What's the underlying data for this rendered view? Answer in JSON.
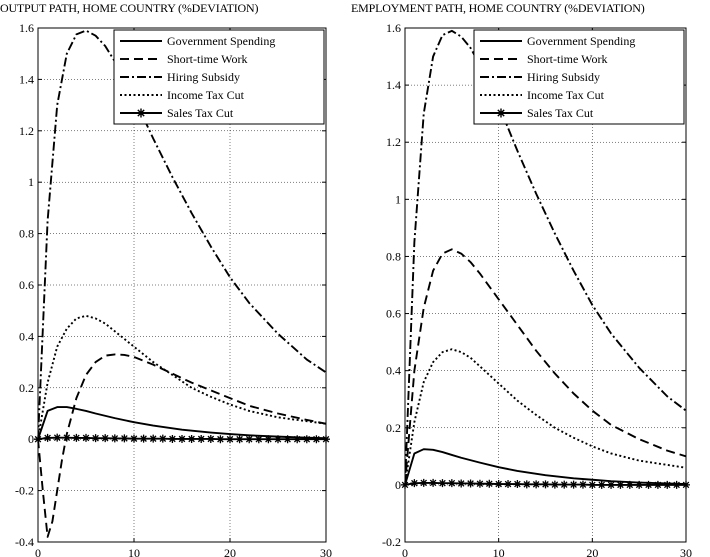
{
  "chart_data": [
    {
      "type": "line",
      "title": "OUTPUT PATH, HOME COUNTRY (%DEVIATION)",
      "xlabel": "",
      "ylabel": "",
      "xlim": [
        0,
        30
      ],
      "ylim": [
        -0.4,
        1.6
      ],
      "xticks": [
        0,
        10,
        20,
        30
      ],
      "yticks": [
        -0.4,
        -0.2,
        0,
        0.2,
        0.4,
        0.6,
        0.8,
        1,
        1.2,
        1.4,
        1.6
      ],
      "xtick_labels": [
        "0",
        "10",
        "20",
        "30"
      ],
      "ytick_labels": [
        "-0.4",
        "-0.2",
        "0",
        "0.2",
        "0.4",
        "0.6",
        "0.8",
        "1",
        "1.2",
        "1.4",
        "1.6"
      ],
      "grid": true,
      "legend_position": "top-right",
      "series": [
        {
          "name": "Government Spending",
          "style": "solid",
          "x": [
            0,
            1,
            2,
            3,
            4,
            5,
            6,
            8,
            10,
            12,
            15,
            18,
            20,
            22,
            25,
            28,
            30
          ],
          "y": [
            0,
            0.11,
            0.125,
            0.125,
            0.118,
            0.11,
            0.1,
            0.082,
            0.066,
            0.053,
            0.037,
            0.026,
            0.02,
            0.015,
            0.01,
            0.006,
            0.004
          ]
        },
        {
          "name": "Short-time Work",
          "style": "dashed",
          "x": [
            0,
            0.5,
            1,
            1.5,
            2,
            2.5,
            3,
            4,
            5,
            6,
            7,
            8,
            9,
            10,
            12,
            14,
            16,
            18,
            20,
            22,
            25,
            28,
            30
          ],
          "y": [
            0,
            -0.2,
            -0.38,
            -0.32,
            -0.2,
            -0.08,
            0.02,
            0.16,
            0.25,
            0.3,
            0.325,
            0.33,
            0.328,
            0.32,
            0.29,
            0.255,
            0.22,
            0.19,
            0.16,
            0.13,
            0.1,
            0.075,
            0.06
          ]
        },
        {
          "name": "Hiring Subsidy",
          "style": "dashdot",
          "x": [
            0,
            1,
            2,
            3,
            4,
            5,
            6,
            7,
            8,
            10,
            12,
            14,
            16,
            18,
            20,
            22,
            25,
            28,
            30
          ],
          "y": [
            0,
            0.85,
            1.3,
            1.5,
            1.575,
            1.59,
            1.57,
            1.53,
            1.47,
            1.33,
            1.17,
            1.02,
            0.88,
            0.75,
            0.63,
            0.53,
            0.41,
            0.31,
            0.26
          ]
        },
        {
          "name": "Income Tax Cut",
          "style": "dotted",
          "x": [
            0,
            1,
            2,
            3,
            4,
            5,
            6,
            7,
            8,
            10,
            12,
            14,
            16,
            18,
            20,
            22,
            25,
            28,
            30
          ],
          "y": [
            0,
            0.22,
            0.36,
            0.43,
            0.47,
            0.48,
            0.47,
            0.45,
            0.42,
            0.36,
            0.3,
            0.25,
            0.2,
            0.165,
            0.135,
            0.11,
            0.085,
            0.07,
            0.06
          ]
        },
        {
          "name": "Sales Tax Cut",
          "style": "solid-star",
          "x": [
            0,
            1,
            2,
            3,
            4,
            5,
            6,
            7,
            8,
            9,
            10,
            11,
            12,
            13,
            14,
            15,
            16,
            17,
            18,
            19,
            20,
            21,
            22,
            23,
            24,
            25,
            26,
            27,
            28,
            29,
            30
          ],
          "y": [
            0,
            0.005,
            0.006,
            0.006,
            0.005,
            0.005,
            0.004,
            0.004,
            0.003,
            0.003,
            0.002,
            0.002,
            0.002,
            0.002,
            0.001,
            0.001,
            0.001,
            0.001,
            0.001,
            0,
            0,
            0,
            0,
            0,
            0,
            0,
            0,
            0,
            0,
            0,
            0
          ]
        }
      ]
    },
    {
      "type": "line",
      "title": "EMPLOYMENT PATH, HOME COUNTRY (%DEVIATION)",
      "xlabel": "",
      "ylabel": "",
      "xlim": [
        0,
        30
      ],
      "ylim": [
        -0.2,
        1.6
      ],
      "xticks": [
        0,
        10,
        20,
        30
      ],
      "yticks": [
        -0.2,
        0,
        0.2,
        0.4,
        0.6,
        0.8,
        1,
        1.2,
        1.4,
        1.6
      ],
      "xtick_labels": [
        "0",
        "10",
        "20",
        "30"
      ],
      "ytick_labels": [
        "-0.2",
        "0",
        "0.2",
        "0.4",
        "0.6",
        "0.8",
        "1",
        "1.2",
        "1.4",
        "1.6"
      ],
      "grid": true,
      "legend_position": "top-right",
      "series": [
        {
          "name": "Government Spending",
          "style": "solid",
          "x": [
            0,
            1,
            2,
            3,
            4,
            5,
            6,
            8,
            10,
            12,
            15,
            18,
            20,
            22,
            25,
            28,
            30
          ],
          "y": [
            0,
            0.11,
            0.125,
            0.123,
            0.115,
            0.105,
            0.095,
            0.078,
            0.062,
            0.049,
            0.034,
            0.023,
            0.018,
            0.013,
            0.008,
            0.005,
            0.003
          ]
        },
        {
          "name": "Short-time Work",
          "style": "dashed",
          "x": [
            0,
            1,
            2,
            3,
            4,
            5,
            6,
            7,
            8,
            10,
            12,
            14,
            16,
            18,
            20,
            22,
            25,
            28,
            30
          ],
          "y": [
            0,
            0.4,
            0.62,
            0.75,
            0.81,
            0.825,
            0.81,
            0.78,
            0.74,
            0.65,
            0.56,
            0.47,
            0.39,
            0.32,
            0.26,
            0.21,
            0.16,
            0.12,
            0.1
          ]
        },
        {
          "name": "Hiring Subsidy",
          "style": "dashdot",
          "x": [
            0,
            1,
            2,
            3,
            4,
            5,
            6,
            7,
            8,
            10,
            12,
            14,
            16,
            18,
            20,
            22,
            25,
            28,
            30
          ],
          "y": [
            0,
            0.85,
            1.3,
            1.5,
            1.575,
            1.59,
            1.57,
            1.53,
            1.47,
            1.33,
            1.17,
            1.02,
            0.88,
            0.75,
            0.63,
            0.53,
            0.41,
            0.31,
            0.26
          ]
        },
        {
          "name": "Income Tax Cut",
          "style": "dotted",
          "x": [
            0,
            1,
            2,
            3,
            4,
            5,
            6,
            7,
            8,
            10,
            12,
            14,
            16,
            18,
            20,
            22,
            25,
            28,
            30
          ],
          "y": [
            0,
            0.22,
            0.36,
            0.43,
            0.465,
            0.475,
            0.465,
            0.445,
            0.415,
            0.355,
            0.295,
            0.245,
            0.2,
            0.165,
            0.135,
            0.11,
            0.085,
            0.07,
            0.06
          ]
        },
        {
          "name": "Sales Tax Cut",
          "style": "solid-star",
          "x": [
            0,
            1,
            2,
            3,
            4,
            5,
            6,
            7,
            8,
            9,
            10,
            11,
            12,
            13,
            14,
            15,
            16,
            17,
            18,
            19,
            20,
            21,
            22,
            23,
            24,
            25,
            26,
            27,
            28,
            29,
            30
          ],
          "y": [
            0,
            0.006,
            0.007,
            0.007,
            0.006,
            0.006,
            0.005,
            0.005,
            0.004,
            0.004,
            0.003,
            0.003,
            0.003,
            0.002,
            0.002,
            0.002,
            0.001,
            0.001,
            0.001,
            0.001,
            0,
            0,
            0,
            0,
            0,
            0,
            0,
            0,
            0,
            0,
            0
          ]
        }
      ]
    }
  ]
}
